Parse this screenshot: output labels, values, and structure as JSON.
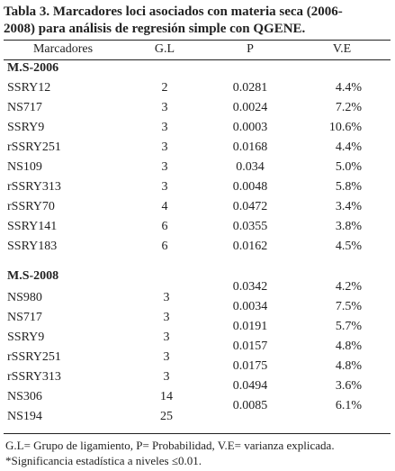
{
  "title_lines": [
    "Tabla 3. Marcadores loci asociados con materia seca (2006-",
    "2008) para análisis de regresión simple con QGENE."
  ],
  "table": {
    "header": [
      "Marcadores",
      "G.L",
      "P",
      "V.E"
    ],
    "sections": [
      {
        "label": "M.S-2006",
        "rows": [
          [
            "SSRY12",
            "2",
            "0.0281",
            "4.4%"
          ],
          [
            "NS717",
            "3",
            "0.0024",
            "7.2%"
          ],
          [
            "SSRY9",
            "3",
            "0.0003",
            "10.6%"
          ],
          [
            "rSSRY251",
            "3",
            "0.0168",
            "4.4%"
          ],
          [
            "NS109",
            "3",
            "0.034",
            "5.0%"
          ],
          [
            "rSSRY313",
            "3",
            "0.0048",
            "5.8%"
          ],
          [
            "rSSRY70",
            "4",
            "0.0472",
            "3.4%"
          ],
          [
            "SSRY141",
            "6",
            "0.0355",
            "3.8%"
          ],
          [
            "SSRY183",
            "6",
            "0.0162",
            "4.5%"
          ]
        ]
      },
      {
        "label": "M.S-2008",
        "rows": [
          [
            "NS980",
            "3",
            "0.0342",
            "4.2%"
          ],
          [
            "NS717",
            "3",
            "0.0034",
            "7.5%"
          ],
          [
            "SSRY9",
            "3",
            "0.0191",
            "5.7%"
          ],
          [
            "rSSRY251",
            "3",
            "0.0157",
            "4.8%"
          ],
          [
            "rSSRY313",
            "3",
            "0.0175",
            "4.8%"
          ],
          [
            "NS306",
            "14",
            "0.0494",
            "3.6%"
          ],
          [
            "NS194",
            "25",
            "0.0085",
            "6.1%"
          ]
        ]
      }
    ]
  },
  "footnotes": [
    "G.L= Grupo de ligamiento, P= Probabilidad, V.E= varianza explicada.",
    "*Significancia estadística a niveles ≤0.01."
  ]
}
